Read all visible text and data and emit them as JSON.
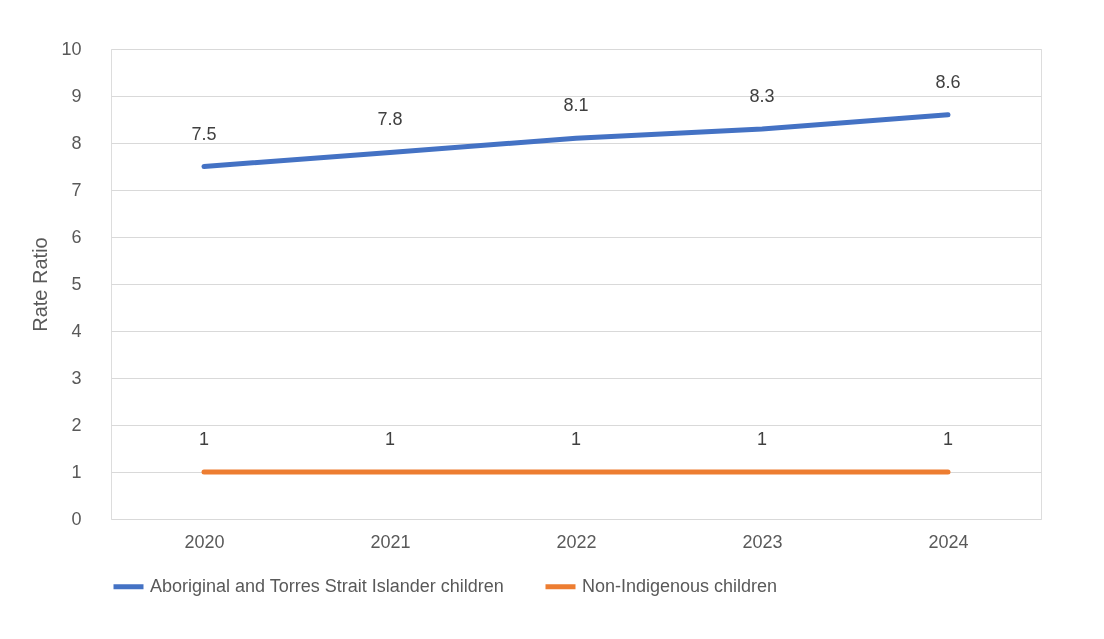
{
  "chart_data": {
    "type": "line",
    "ylabel": "Rate Ratio",
    "categories": [
      "2020",
      "2021",
      "2022",
      "2023",
      "2024"
    ],
    "series": [
      {
        "name": "Aboriginal and Torres Strait Islander children",
        "color": "#4472c4",
        "values": [
          7.5,
          7.8,
          8.1,
          8.3,
          8.6
        ]
      },
      {
        "name": "Non-Indigenous children",
        "color": "#ed7d31",
        "values": [
          1,
          1,
          1,
          1,
          1
        ]
      }
    ],
    "ylim": [
      0,
      10
    ],
    "yticks": [
      0,
      1,
      2,
      3,
      4,
      5,
      6,
      7,
      8,
      9,
      10
    ],
    "grid": "y",
    "legend": "bottom",
    "data_labels": true,
    "marker": "none",
    "line_style": "solid"
  }
}
